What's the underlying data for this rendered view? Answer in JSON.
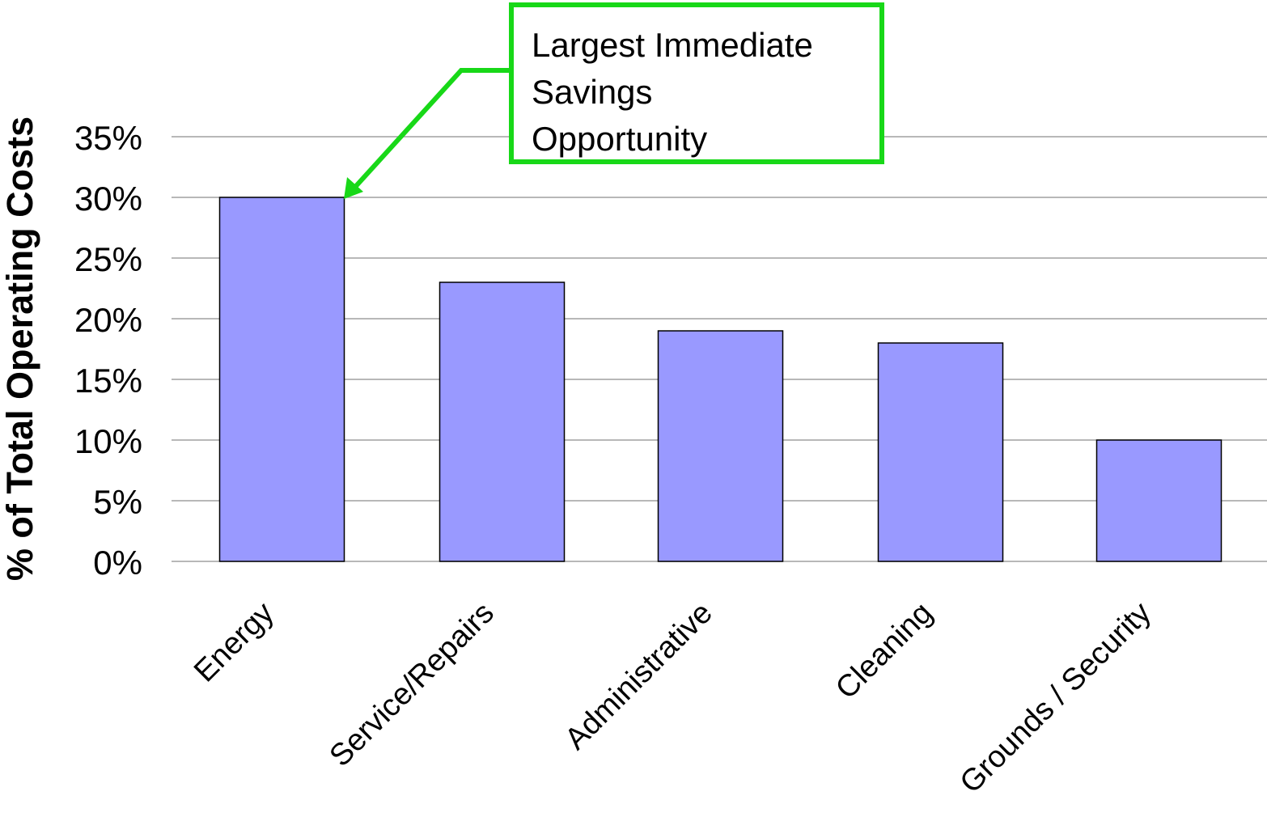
{
  "chart_data": {
    "type": "bar",
    "ylabel": "% of Total Operating Costs",
    "categories": [
      "Energy",
      "Service/Repairs",
      "Administrative",
      "Cleaning",
      "Grounds / Security"
    ],
    "values": [
      30,
      23,
      19,
      18,
      10
    ],
    "unit": "%",
    "ylim": [
      0,
      35
    ],
    "yticks": [
      0,
      5,
      10,
      15,
      20,
      25,
      30,
      35
    ],
    "ytick_labels": [
      "0%",
      "5%",
      "10%",
      "15%",
      "20%",
      "25%",
      "30%",
      "35%"
    ],
    "grid": true,
    "bar_color": "#9999ff",
    "bar_edge_color": "#000000",
    "annotation": {
      "lines": [
        "Largest Immediate",
        "Savings",
        "Opportunity"
      ],
      "points_to": "Energy",
      "color": "#18d818"
    }
  }
}
